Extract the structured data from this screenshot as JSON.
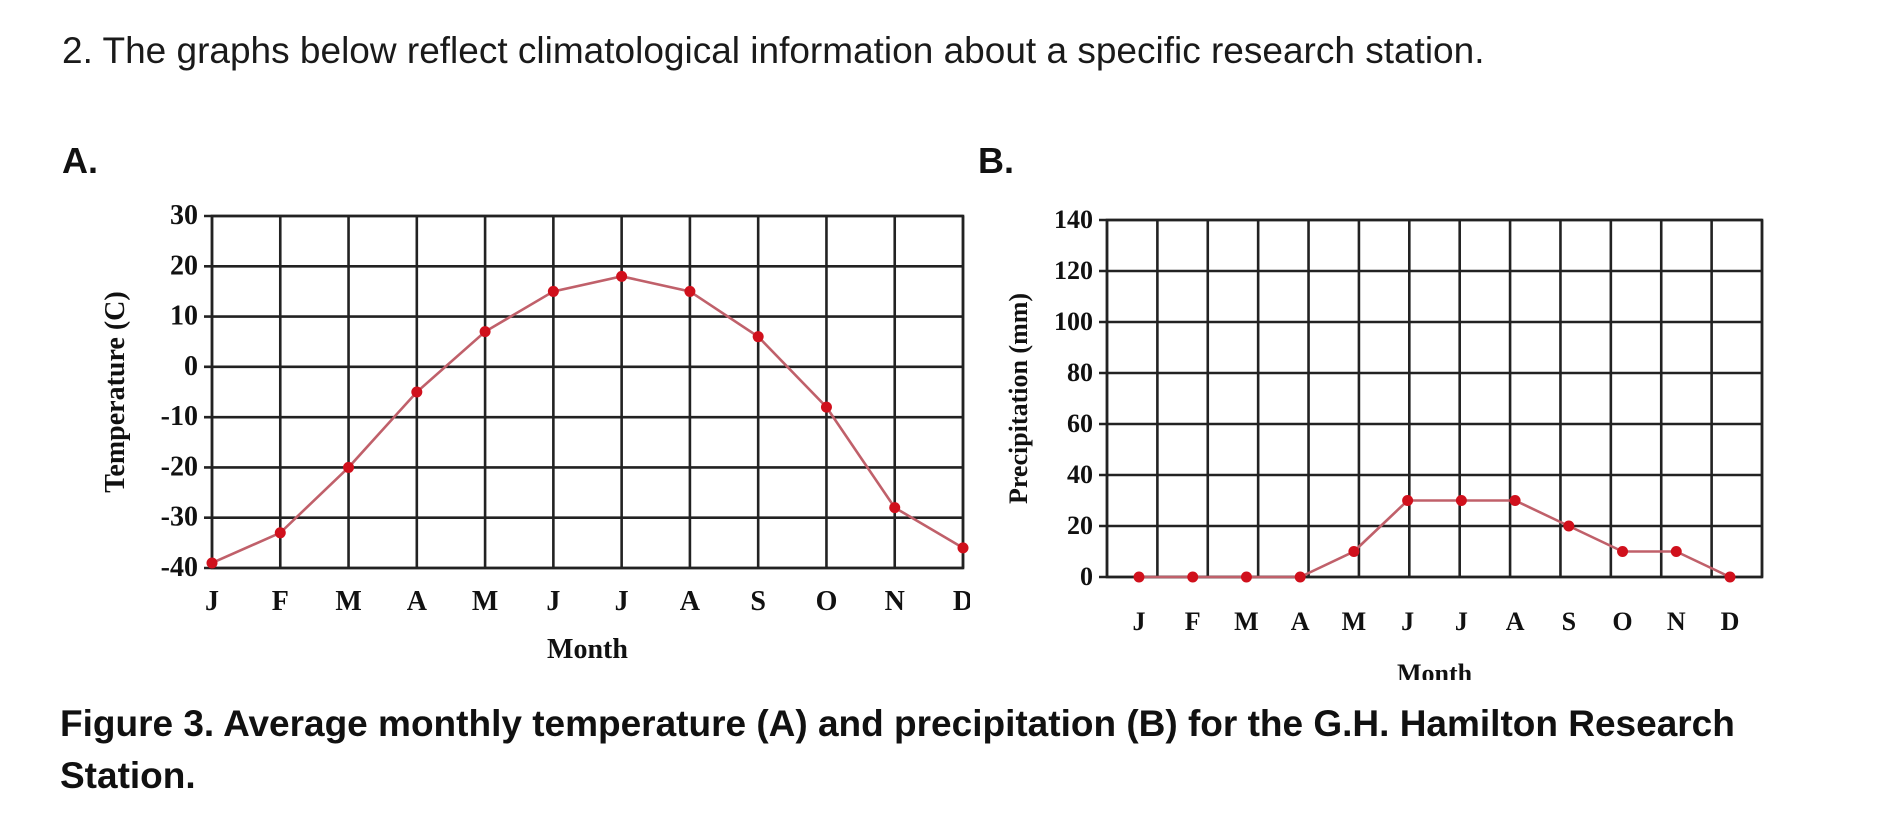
{
  "question": "2. The graphs below reflect climatological information about a specific research station.",
  "caption": "Figure 3. Average monthly temperature (A) and precipitation (B) for the G.H. Hamilton Research Station.",
  "colors": {
    "line": "#c0606a",
    "marker": "#d0101c",
    "grid": "#222222"
  },
  "chart_data": [
    {
      "label": "A.",
      "type": "line",
      "categories": [
        "J",
        "F",
        "M",
        "A",
        "M",
        "J",
        "J",
        "A",
        "S",
        "O",
        "N",
        "D"
      ],
      "values": [
        -39,
        -33,
        -20,
        -5,
        7,
        15,
        18,
        15,
        6,
        -8,
        -28,
        -36
      ],
      "xlabel": "Month",
      "ylabel": "Temperature (C)",
      "ylim": [
        -40,
        30
      ],
      "yticks": [
        -40,
        -30,
        -20,
        -10,
        0,
        10,
        20,
        30
      ],
      "grid": true
    },
    {
      "label": "B.",
      "type": "line",
      "categories": [
        "J",
        "F",
        "M",
        "A",
        "M",
        "J",
        "J",
        "A",
        "S",
        "O",
        "N",
        "D"
      ],
      "values": [
        0,
        0,
        0,
        0,
        10,
        30,
        30,
        30,
        20,
        10,
        10,
        0
      ],
      "xlabel": "Month",
      "ylabel": "Precipitation (mm)",
      "ylim": [
        0,
        140
      ],
      "yticks": [
        0,
        20,
        40,
        60,
        80,
        100,
        120,
        140
      ],
      "grid": true
    }
  ]
}
